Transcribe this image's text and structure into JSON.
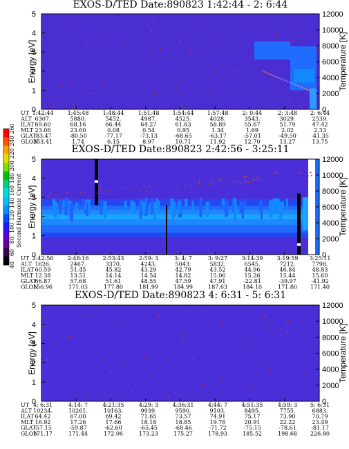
{
  "chart_data": [
    {
      "type": "heatmap",
      "title": "EXOS-D/TED   Date:890823   1:42:44 - 2: 6:44",
      "ylabel": "Energy [eV]",
      "y2label": "Temperature [K]",
      "ylim": [
        0,
        5
      ],
      "y2lim": [
        0,
        12000
      ],
      "yticks": [
        "0",
        "1",
        "2",
        "3",
        "4",
        "5"
      ],
      "y2ticks": [
        "0",
        "2000",
        "4000",
        "6000",
        "8000",
        "10000",
        "12000"
      ],
      "ephemeris": {
        "labels": [
          "UT",
          "ALT",
          "ILAT",
          "MLT",
          "GLAT",
          "GLON"
        ],
        "columns": [
          [
            "1:42:44",
            "6307.",
            "69.60",
            "23.06",
            "-83.47",
            "353.41"
          ],
          [
            "1:45:48",
            "5880.",
            "68.16",
            "23.60",
            "-80.50",
            "1.74"
          ],
          [
            "1:48:44",
            "5452.",
            "66.44",
            "0.08",
            "-77.17",
            "6.15"
          ],
          [
            "1:51:48",
            "4987.",
            "64.27",
            "0.54",
            "-73.13",
            "8.97"
          ],
          [
            "1:54:44",
            "4525.",
            "61.83",
            "0.95",
            "-68.65",
            "10.71"
          ],
          [
            "1:57:48",
            "4028.",
            "58.89",
            "1.34",
            "-63.17",
            "11.92"
          ],
          [
            "2: 0:44",
            "3543.",
            "55.67",
            "1.69",
            "-57.01",
            "12.70"
          ],
          [
            "2: 3:48",
            "3029.",
            "51.79",
            "2.02",
            "-49.50",
            "13.27"
          ],
          [
            "2: 6:44",
            "2539.",
            "47.42",
            "2.33",
            "-41.35",
            "13.75"
          ]
        ]
      }
    },
    {
      "type": "heatmap",
      "title": "EXOS-D/TED   Date:890823   2:42:56 - 3:25:11",
      "ylabel": "Energy [eV]",
      "y2label": "Temperature [K]",
      "ylim": [
        0,
        5
      ],
      "y2lim": [
        0,
        12000
      ],
      "yticks": [
        "0",
        "1",
        "2",
        "3",
        "4",
        "5"
      ],
      "y2ticks": [
        "0",
        "2000",
        "4000",
        "6000",
        "8000",
        "10000",
        "12000"
      ],
      "colorbar": {
        "label": "Second Harmonic Current",
        "ticks": [
          "40",
          "60",
          "80",
          "100",
          "120",
          "140",
          "160",
          "180",
          "200",
          "220",
          "240",
          "260"
        ],
        "colors": [
          "#000000",
          "#3a0050",
          "#6a00a0",
          "#5a00d8",
          "#1a1aff",
          "#0050ff",
          "#0090ff",
          "#00c0ff",
          "#00e0e0",
          "#00d080",
          "#00c000",
          "#80e000",
          "#e0e000",
          "#ffa000",
          "#ff5000",
          "#ff0000"
        ]
      },
      "ephemeris": {
        "labels": [
          "UT",
          "ALT",
          "ILAT",
          "MLT",
          "GLAT",
          "GLON"
        ],
        "columns": [
          [
            "2:42:56",
            "1626.",
            "60.59",
            "12.38",
            "66.87",
            "156.96"
          ],
          [
            "2:48:16",
            "2467.",
            "51.45",
            "13.51",
            "57.68",
            "171.03"
          ],
          [
            "2:53:43",
            "3370.",
            "45.82",
            "14.14",
            "51.61",
            "177.80"
          ],
          [
            "2:59: 3",
            "4243.",
            "43.29",
            "14.54",
            "48.55",
            "181.99"
          ],
          [
            "3: 4: 7",
            "5043.",
            "42.79",
            "14.82",
            "47.59",
            "184.99"
          ],
          [
            "3: 9:27",
            "5832.",
            "43.52",
            "15.06",
            "47.91",
            "187.63"
          ],
          [
            "3:14:39",
            "6545.",
            "44.96",
            "15.26",
            "-22.81",
            "184.10"
          ],
          [
            "3:19:59",
            "7212.",
            "46.84",
            "15.44",
            "-39.97",
            "171.80"
          ],
          [
            "3:25:11",
            "7798.",
            "48.83",
            "15.60",
            "-41.92",
            "171.40"
          ]
        ]
      }
    },
    {
      "type": "heatmap",
      "title": "EXOS-D/TED   Date:890823   4: 6:31 - 5: 6:31",
      "ylabel": "Energy [eV]",
      "y2label": "Temperature [K]",
      "ylim": [
        0,
        5
      ],
      "y2lim": [
        0,
        12000
      ],
      "yticks": [
        "0",
        "1",
        "2",
        "3",
        "4",
        "5"
      ],
      "y2ticks": [
        "0",
        "2000",
        "4000",
        "6000",
        "8000",
        "10000",
        "12000"
      ],
      "ephemeris": {
        "labels": [
          "UT",
          "ALT",
          "ILAT",
          "MLT",
          "GLAT",
          "GLON"
        ],
        "columns": [
          [
            "4: 6:31",
            "10234.",
            "64.42",
            "16.92",
            "-57.15",
            "171.17"
          ],
          [
            "4:14: 7",
            "10261.",
            "67.00",
            "17.26",
            "-59.87",
            "171.44"
          ],
          [
            "4:21:35",
            "10163.",
            "69.42",
            "17.66",
            "-62.60",
            "172.06"
          ],
          [
            "4:29: 3",
            "9939.",
            "71.65",
            "18.18",
            "-65.45",
            "173.23"
          ],
          [
            "4:36:31",
            "9590.",
            "73.57",
            "18.85",
            "-68.46",
            "175.27"
          ],
          [
            "4:44: 7",
            "9103.",
            "74.91",
            "19.76",
            "-71.72",
            "178.93"
          ],
          [
            "4:51:35",
            "8495.",
            "75.17",
            "20.91",
            "-75.15",
            "185.52"
          ],
          [
            "4:59: 3",
            "7755.",
            "73.90",
            "22.22",
            "-78.61",
            "198.68"
          ],
          [
            "5: 6:31",
            "6883.",
            "70.79",
            "23.49",
            "-81.17",
            "226.80"
          ]
        ]
      }
    }
  ]
}
